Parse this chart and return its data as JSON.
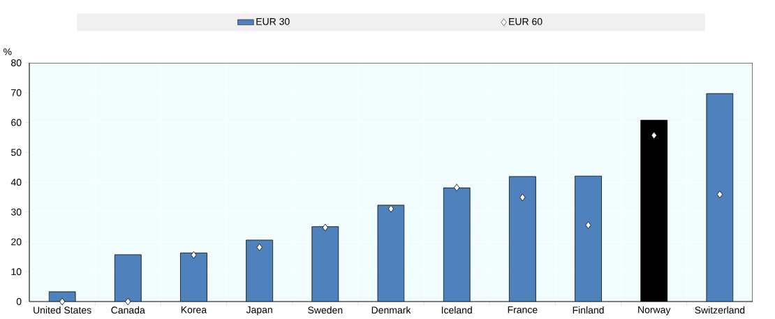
{
  "chart_data": {
    "type": "bar",
    "ylabel": "%",
    "categories": [
      "United States",
      "Canada",
      "Korea",
      "Japan",
      "Sweden",
      "Denmark",
      "Iceland",
      "France",
      "Finland",
      "Norway",
      "Switzerland"
    ],
    "series": [
      {
        "name": "EUR 30",
        "color": "#4f81bd",
        "colors": [
          "#4f81bd",
          "#4f81bd",
          "#4f81bd",
          "#4f81bd",
          "#4f81bd",
          "#4f81bd",
          "#4f81bd",
          "#4f81bd",
          "#4f81bd",
          "#000000",
          "#4f81bd"
        ],
        "values": [
          3.3,
          15.7,
          16.3,
          20.6,
          25.1,
          32.3,
          38.1,
          41.9,
          42.1,
          60.8,
          69.7
        ]
      },
      {
        "name": "EUR 60",
        "type": "scatter",
        "color": "#ffffff",
        "marker": "diamond",
        "values": [
          0,
          0,
          15.6,
          18.2,
          24.8,
          31.1,
          38.2,
          34.9,
          25.6,
          55.7,
          35.9
        ]
      }
    ],
    "ylim": [
      0,
      80
    ],
    "yticks": [
      0,
      10,
      20,
      30,
      40,
      50,
      60,
      70,
      80
    ],
    "grid": true,
    "legend": "top"
  }
}
